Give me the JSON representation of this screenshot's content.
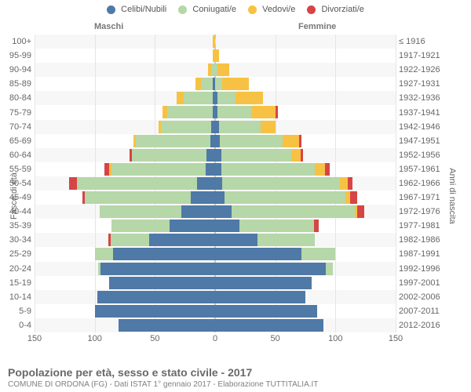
{
  "legend": [
    {
      "label": "Celibi/Nubili",
      "color": "#4f79a6"
    },
    {
      "label": "Coniugati/e",
      "color": "#b6d7a8"
    },
    {
      "label": "Vedovi/e",
      "color": "#f7c243"
    },
    {
      "label": "Divorziati/e",
      "color": "#d64545"
    }
  ],
  "headers": {
    "male": "Maschi",
    "female": "Femmine"
  },
  "axis": {
    "y_left_title": "Fasce di età",
    "y_right_title": "Anni di nascita",
    "x_ticks": [
      -150,
      -100,
      -50,
      0,
      50,
      100,
      150
    ],
    "x_tick_labels": [
      "150",
      "100",
      "50",
      "0",
      "50",
      "100",
      "150"
    ],
    "x_min": -150,
    "x_max": 150
  },
  "footer": {
    "title": "Popolazione per età, sesso e stato civile - 2017",
    "subtitle": "COMUNE DI ORDONA (FG) - Dati ISTAT 1° gennaio 2017 - Elaborazione TUTTITALIA.IT"
  },
  "rows": [
    {
      "age": "100+",
      "birth": "≤ 1916",
      "m": [
        0,
        0,
        2,
        0
      ],
      "f": [
        0,
        0,
        0,
        0
      ]
    },
    {
      "age": "95-99",
      "birth": "1917-1921",
      "m": [
        0,
        0,
        2,
        0
      ],
      "f": [
        0,
        0,
        3,
        0
      ]
    },
    {
      "age": "90-94",
      "birth": "1922-1926",
      "m": [
        0,
        3,
        3,
        0
      ],
      "f": [
        0,
        2,
        10,
        0
      ]
    },
    {
      "age": "85-89",
      "birth": "1927-1931",
      "m": [
        2,
        10,
        4,
        0
      ],
      "f": [
        0,
        6,
        22,
        0
      ]
    },
    {
      "age": "80-84",
      "birth": "1932-1936",
      "m": [
        2,
        24,
        6,
        0
      ],
      "f": [
        2,
        15,
        23,
        0
      ]
    },
    {
      "age": "75-79",
      "birth": "1937-1941",
      "m": [
        2,
        38,
        4,
        0
      ],
      "f": [
        2,
        28,
        20,
        2
      ]
    },
    {
      "age": "70-74",
      "birth": "1942-1946",
      "m": [
        3,
        42,
        2,
        0
      ],
      "f": [
        3,
        35,
        12,
        0
      ]
    },
    {
      "age": "65-69",
      "birth": "1947-1951",
      "m": [
        4,
        62,
        2,
        0
      ],
      "f": [
        4,
        52,
        14,
        2
      ]
    },
    {
      "age": "60-64",
      "birth": "1952-1956",
      "m": [
        7,
        62,
        0,
        2
      ],
      "f": [
        5,
        58,
        8,
        2
      ]
    },
    {
      "age": "55-59",
      "birth": "1957-1961",
      "m": [
        8,
        78,
        2,
        4
      ],
      "f": [
        5,
        78,
        8,
        4
      ]
    },
    {
      "age": "50-54",
      "birth": "1962-1966",
      "m": [
        15,
        100,
        0,
        6
      ],
      "f": [
        6,
        98,
        6,
        4
      ]
    },
    {
      "age": "45-49",
      "birth": "1967-1971",
      "m": [
        20,
        88,
        0,
        2
      ],
      "f": [
        8,
        100,
        4,
        6
      ]
    },
    {
      "age": "40-44",
      "birth": "1972-1976",
      "m": [
        28,
        68,
        0,
        0
      ],
      "f": [
        14,
        102,
        2,
        6
      ]
    },
    {
      "age": "35-39",
      "birth": "1977-1981",
      "m": [
        38,
        48,
        0,
        0
      ],
      "f": [
        20,
        62,
        0,
        4
      ]
    },
    {
      "age": "30-34",
      "birth": "1982-1986",
      "m": [
        55,
        32,
        0,
        2
      ],
      "f": [
        35,
        48,
        0,
        0
      ]
    },
    {
      "age": "25-29",
      "birth": "1987-1991",
      "m": [
        85,
        15,
        0,
        0
      ],
      "f": [
        72,
        28,
        0,
        0
      ]
    },
    {
      "age": "20-24",
      "birth": "1992-1996",
      "m": [
        95,
        2,
        0,
        0
      ],
      "f": [
        92,
        6,
        0,
        0
      ]
    },
    {
      "age": "15-19",
      "birth": "1997-2001",
      "m": [
        88,
        0,
        0,
        0
      ],
      "f": [
        80,
        0,
        0,
        0
      ]
    },
    {
      "age": "10-14",
      "birth": "2002-2006",
      "m": [
        98,
        0,
        0,
        0
      ],
      "f": [
        75,
        0,
        0,
        0
      ]
    },
    {
      "age": "5-9",
      "birth": "2007-2011",
      "m": [
        100,
        0,
        0,
        0
      ],
      "f": [
        85,
        0,
        0,
        0
      ]
    },
    {
      "age": "0-4",
      "birth": "2012-2016",
      "m": [
        80,
        0,
        0,
        0
      ],
      "f": [
        90,
        0,
        0,
        0
      ]
    }
  ]
}
